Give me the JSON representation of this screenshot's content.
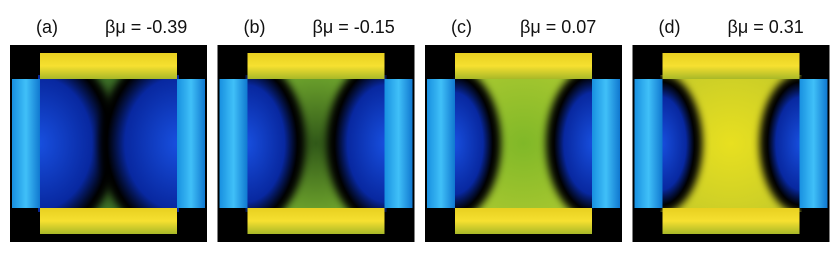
{
  "panels": [
    {
      "label": "(a)",
      "title": "βμ = -0.39"
    },
    {
      "label": "(b)",
      "title": "βμ = -0.15"
    },
    {
      "label": "(c)",
      "title": "βμ = 0.07"
    },
    {
      "label": "(d)",
      "title": "βμ = 0.31"
    }
  ]
}
